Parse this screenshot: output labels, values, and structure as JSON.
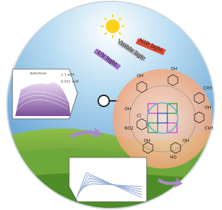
{
  "light": {
    "nir": "NIR light",
    "visible": "Visible light",
    "uv": "UV light"
  },
  "panel": {
    "title": "detection",
    "high": "2.1 mM",
    "low": "0.551 mM"
  },
  "molecules": [
    "OH",
    "OH",
    "CH3",
    "Cl",
    "NO2",
    "OH",
    "OH",
    "CH3",
    "OH",
    "HO",
    "OH"
  ]
}
